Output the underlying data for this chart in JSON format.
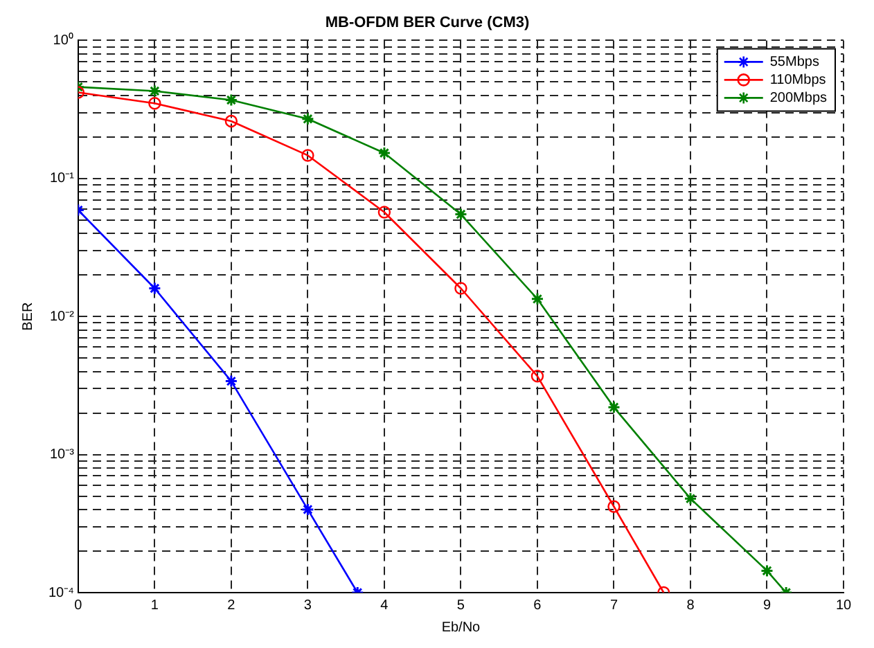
{
  "chart_data": {
    "type": "line",
    "title": "MB-OFDM BER Curve (CM3)",
    "xlabel": "Eb/No",
    "ylabel": "BER",
    "log": "y",
    "grid": true,
    "legend": "top right",
    "line_style": "solid",
    "xlim": [
      0,
      10
    ],
    "xticks": [
      0,
      1,
      2,
      3,
      4,
      5,
      6,
      7,
      8,
      9,
      10
    ],
    "ylim": [
      0.0001,
      1
    ],
    "yticks": [
      {
        "value": 0.0001,
        "label": "10⁻⁴"
      },
      {
        "value": 0.0002,
        "label": null
      },
      {
        "value": 0.0003,
        "label": null
      },
      {
        "value": 0.0004,
        "label": null
      },
      {
        "value": 0.0005,
        "label": null
      },
      {
        "value": 0.0006,
        "label": null
      },
      {
        "value": 0.0007,
        "label": null
      },
      {
        "value": 0.0008,
        "label": null
      },
      {
        "value": 0.0009,
        "label": null
      },
      {
        "value": 0.001,
        "label": "10⁻³"
      },
      {
        "value": 0.002,
        "label": null
      },
      {
        "value": 0.003,
        "label": null
      },
      {
        "value": 0.004,
        "label": null
      },
      {
        "value": 0.005,
        "label": null
      },
      {
        "value": 0.006,
        "label": null
      },
      {
        "value": 0.007,
        "label": null
      },
      {
        "value": 0.008,
        "label": null
      },
      {
        "value": 0.009,
        "label": null
      },
      {
        "value": 0.01,
        "label": "10⁻²"
      },
      {
        "value": 0.02,
        "label": null
      },
      {
        "value": 0.03,
        "label": null
      },
      {
        "value": 0.04,
        "label": null
      },
      {
        "value": 0.05,
        "label": null
      },
      {
        "value": 0.06,
        "label": null
      },
      {
        "value": 0.07,
        "label": null
      },
      {
        "value": 0.08,
        "label": null
      },
      {
        "value": 0.09,
        "label": null
      },
      {
        "value": 0.1,
        "label": "10⁻¹"
      },
      {
        "value": 0.2,
        "label": null
      },
      {
        "value": 0.3,
        "label": null
      },
      {
        "value": 0.4,
        "label": null
      },
      {
        "value": 0.5,
        "label": null
      },
      {
        "value": 0.6,
        "label": null
      },
      {
        "value": 0.7,
        "label": null
      },
      {
        "value": 0.8,
        "label": null
      },
      {
        "value": 0.9,
        "label": null
      },
      {
        "value": 1,
        "label": "10⁰"
      }
    ],
    "series": [
      {
        "name": "55Mbps",
        "color": "#0000ff",
        "marker": "cross",
        "x": [
          0,
          1,
          2,
          3,
          3.65
        ],
        "values": [
          0.059,
          0.016,
          0.0034,
          0.0004,
          0.0001
        ]
      },
      {
        "name": "110Mbps",
        "color": "#ff0000",
        "marker": "circle",
        "x": [
          0,
          1,
          2,
          3,
          4,
          5,
          6,
          7,
          7.65
        ],
        "values": [
          0.42,
          0.35,
          0.26,
          0.147,
          0.057,
          0.016,
          0.0037,
          0.00042,
          0.0001
        ]
      },
      {
        "name": "200Mbps",
        "color": "#008000",
        "marker": "cross",
        "x": [
          0,
          1,
          2,
          3,
          4,
          5,
          6,
          7,
          8,
          9,
          9.25
        ],
        "values": [
          0.46,
          0.43,
          0.37,
          0.27,
          0.153,
          0.055,
          0.0134,
          0.0022,
          0.00048,
          0.000144,
          0.0001
        ]
      }
    ]
  }
}
